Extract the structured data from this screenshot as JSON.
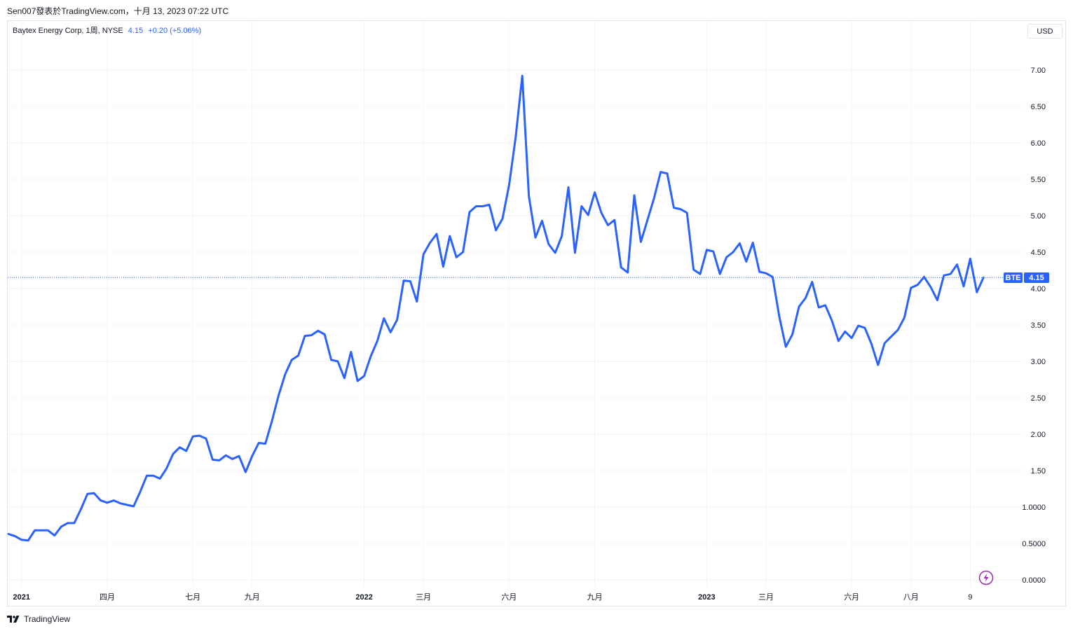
{
  "header": {
    "text": "Sen007發表於TradingView.com，十月 13, 2023 07:22 UTC"
  },
  "legend": {
    "symbol": "Baytex Energy Corp, 1周, NYSE",
    "price": "4.15",
    "change": "+0.20 (+5.06%)"
  },
  "currency_button": "USD",
  "price_tag": {
    "ticker": "BTE",
    "value": "4.15"
  },
  "footer": {
    "brand": "TradingView"
  },
  "colors": {
    "line": "#2962ff",
    "grid": "#f0f3fa",
    "tag_bg": "#2962ff"
  },
  "icons": {
    "flash": "lightning-icon",
    "logo": "tradingview-logo-icon"
  },
  "chart_data": {
    "type": "line",
    "title": "",
    "xlabel": "",
    "ylabel": "",
    "ylim": [
      -0.1,
      7.45
    ],
    "y_ticks": [
      {
        "v": 7.0,
        "label": "7.00"
      },
      {
        "v": 6.5,
        "label": "6.50"
      },
      {
        "v": 6.0,
        "label": "6.00"
      },
      {
        "v": 5.5,
        "label": "5.50"
      },
      {
        "v": 5.0,
        "label": "5.00"
      },
      {
        "v": 4.5,
        "label": "4.50"
      },
      {
        "v": 4.0,
        "label": "4.00"
      },
      {
        "v": 3.5,
        "label": "3.50"
      },
      {
        "v": 3.0,
        "label": "3.00"
      },
      {
        "v": 2.5,
        "label": "2.50"
      },
      {
        "v": 2.0,
        "label": "2.00"
      },
      {
        "v": 1.5,
        "label": "1.50"
      },
      {
        "v": 1.0,
        "label": "1.0000"
      },
      {
        "v": 0.5,
        "label": "0.5000"
      },
      {
        "v": 0.0,
        "label": "0.0000"
      }
    ],
    "x_ticks": [
      {
        "week": 2,
        "label": "2021",
        "bold": true
      },
      {
        "week": 15,
        "label": "四月",
        "bold": false
      },
      {
        "week": 28,
        "label": "七月",
        "bold": false
      },
      {
        "week": 37,
        "label": "九月",
        "bold": false
      },
      {
        "week": 54,
        "label": "2022",
        "bold": true
      },
      {
        "week": 63,
        "label": "三月",
        "bold": false
      },
      {
        "week": 76,
        "label": "六月",
        "bold": false
      },
      {
        "week": 89,
        "label": "九月",
        "bold": false
      },
      {
        "week": 106,
        "label": "2023",
        "bold": true
      },
      {
        "week": 115,
        "label": "三月",
        "bold": false
      },
      {
        "week": 128,
        "label": "六月",
        "bold": false
      },
      {
        "week": 137,
        "label": "八月",
        "bold": false
      },
      {
        "week": 146,
        "label": "9",
        "bold": false
      }
    ],
    "x_range": [
      0,
      156
    ],
    "last_price": 4.15,
    "series": [
      {
        "name": "",
        "values": [
          0.63,
          0.6,
          0.55,
          0.54,
          0.68,
          0.68,
          0.68,
          0.61,
          0.73,
          0.78,
          0.78,
          0.97,
          1.18,
          1.19,
          1.09,
          1.06,
          1.09,
          1.05,
          1.03,
          1.01,
          1.21,
          1.43,
          1.43,
          1.39,
          1.53,
          1.73,
          1.82,
          1.77,
          1.97,
          1.98,
          1.94,
          1.65,
          1.64,
          1.71,
          1.66,
          1.7,
          1.48,
          1.7,
          1.88,
          1.87,
          2.18,
          2.53,
          2.82,
          3.02,
          3.08,
          3.35,
          3.36,
          3.42,
          3.37,
          3.02,
          3.0,
          2.77,
          3.13,
          2.73,
          2.8,
          3.07,
          3.28,
          3.59,
          3.4,
          3.57,
          4.11,
          4.1,
          3.82,
          4.47,
          4.63,
          4.75,
          4.3,
          4.72,
          4.43,
          4.5,
          5.05,
          5.13,
          5.13,
          5.15,
          4.8,
          4.96,
          5.42,
          6.08,
          6.92,
          5.27,
          4.7,
          4.93,
          4.61,
          4.49,
          4.72,
          5.39,
          4.49,
          5.13,
          5.01,
          5.32,
          5.04,
          4.87,
          4.94,
          4.29,
          4.22,
          5.28,
          4.64,
          4.94,
          5.24,
          5.6,
          5.58,
          5.11,
          5.09,
          5.04,
          4.26,
          4.2,
          4.53,
          4.51,
          4.2,
          4.43,
          4.5,
          4.62,
          4.37,
          4.63,
          4.23,
          4.21,
          4.16,
          3.62,
          3.2,
          3.37,
          3.75,
          3.87,
          4.09,
          3.74,
          3.77,
          3.56,
          3.28,
          3.41,
          3.32,
          3.49,
          3.46,
          3.24,
          2.95,
          3.25,
          3.34,
          3.43,
          3.6,
          4.01,
          4.05,
          4.16,
          4.02,
          3.84,
          4.18,
          4.2,
          4.33,
          4.03,
          4.41,
          3.95,
          4.15
        ]
      }
    ]
  }
}
